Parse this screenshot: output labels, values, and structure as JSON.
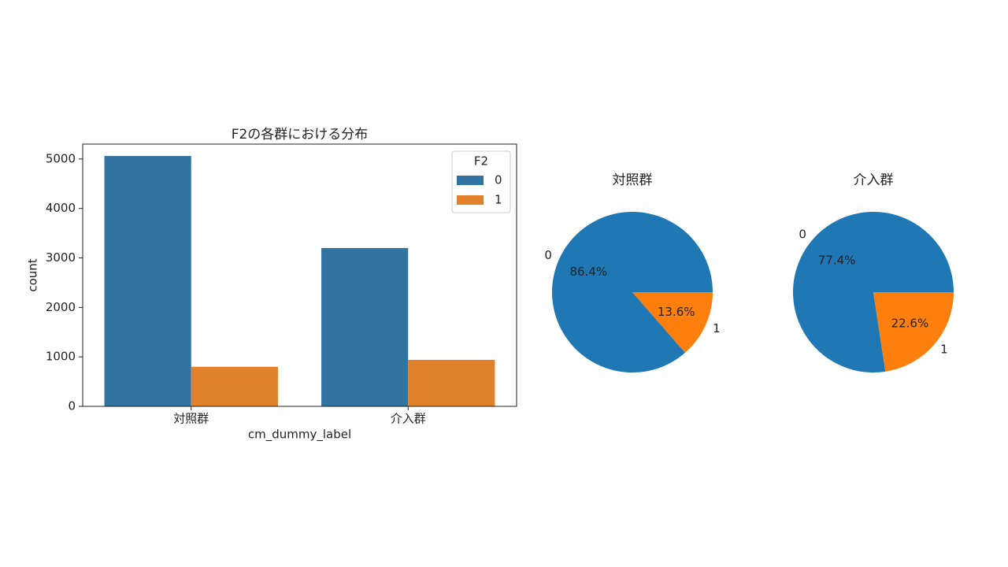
{
  "chart_data": [
    {
      "type": "bar",
      "title": "F2の各群における分布",
      "x_label": "cm_dummy_label",
      "y_label": "count",
      "categories": [
        "対照群",
        "介入群"
      ],
      "series": [
        {
          "name": "0",
          "color": "#3274a1",
          "values": [
            5060,
            3200
          ]
        },
        {
          "name": "1",
          "color": "#e1812c",
          "values": [
            800,
            940
          ]
        }
      ],
      "legend_title": "F2",
      "legend": "upper right",
      "ylim": [
        0,
        5300
      ],
      "yticks": [
        0,
        1000,
        2000,
        3000,
        4000,
        5000
      ]
    },
    {
      "type": "pie",
      "title": "対照群",
      "categories": [
        "0",
        "1"
      ],
      "values": [
        86.4,
        13.6
      ],
      "value_labels": [
        "86.4%",
        "13.6%"
      ],
      "colors": [
        "#1f77b4",
        "#ff7f0e"
      ]
    },
    {
      "type": "pie",
      "title": "介入群",
      "categories": [
        "0",
        "1"
      ],
      "values": [
        77.4,
        22.6
      ],
      "value_labels": [
        "77.4%",
        "22.6%"
      ],
      "colors": [
        "#1f77b4",
        "#ff7f0e"
      ]
    }
  ]
}
